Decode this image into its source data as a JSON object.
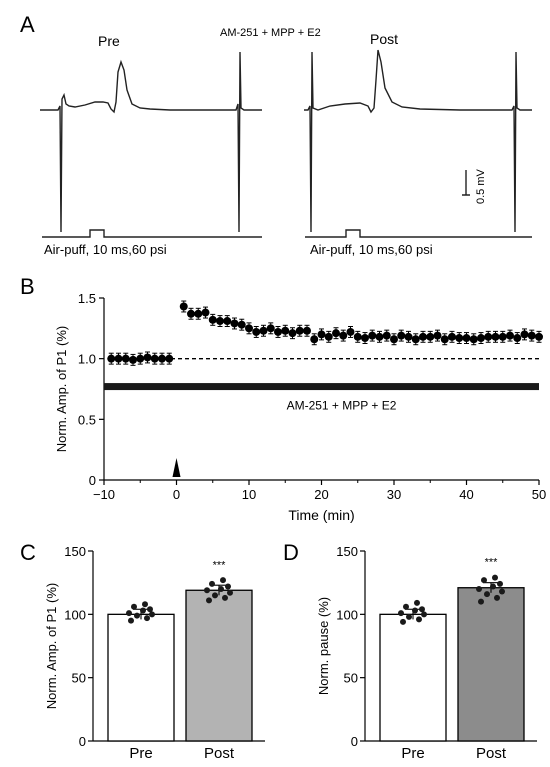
{
  "panels": {
    "A": "A",
    "B": "B",
    "C": "C",
    "D": "D"
  },
  "panel_a": {
    "condition": "AM-251 + MPP + E2",
    "pre_label": "Pre",
    "post_label": "Post",
    "stimulus_label": "Air-puff, 10 ms,60 psi",
    "scale_bar": "0.5 mV"
  },
  "chart_data": [
    {
      "type": "scatter",
      "panel": "B",
      "xlabel": "Time (min)",
      "ylabel": "Norm. Amp. of P1 (%)",
      "xlim": [
        -10,
        50
      ],
      "ylim": [
        0,
        1.5
      ],
      "x_ticks": [
        "−10",
        "0",
        "10",
        "20",
        "30",
        "40",
        "50"
      ],
      "y_ticks": [
        "0",
        "0.5",
        "1.0",
        "1.5"
      ],
      "reference_line": 1.0,
      "drug_bar_label": "AM-251 + MPP + E2",
      "drug_bar_y": 0.77,
      "stimulus_marker_x": 0,
      "x": [
        -9,
        -8,
        -7,
        -6,
        -5,
        -4,
        -3,
        -2,
        -1,
        1,
        2,
        3,
        4,
        5,
        6,
        7,
        8,
        9,
        10,
        11,
        12,
        13,
        14,
        15,
        16,
        17,
        18,
        19,
        20,
        21,
        22,
        23,
        24,
        25,
        26,
        27,
        28,
        29,
        30,
        31,
        32,
        33,
        34,
        35,
        36,
        37,
        38,
        39,
        40,
        41,
        42,
        43,
        44,
        45,
        46,
        47,
        48,
        49,
        50
      ],
      "y": [
        1.0,
        1.0,
        1.0,
        0.99,
        1.0,
        1.01,
        1.0,
        1.0,
        1.0,
        1.43,
        1.37,
        1.37,
        1.38,
        1.32,
        1.31,
        1.31,
        1.29,
        1.28,
        1.25,
        1.22,
        1.23,
        1.25,
        1.22,
        1.23,
        1.21,
        1.23,
        1.23,
        1.16,
        1.2,
        1.18,
        1.21,
        1.19,
        1.22,
        1.18,
        1.17,
        1.19,
        1.18,
        1.19,
        1.16,
        1.19,
        1.18,
        1.16,
        1.18,
        1.18,
        1.19,
        1.16,
        1.18,
        1.17,
        1.17,
        1.16,
        1.17,
        1.18,
        1.18,
        1.18,
        1.19,
        1.17,
        1.2,
        1.19,
        1.18
      ],
      "error": 0.045
    },
    {
      "type": "bar",
      "panel": "C",
      "categories": [
        "Pre",
        "Post"
      ],
      "values": [
        100,
        119
      ],
      "ylabel": "Norm. Amp. of P1 (%)",
      "ylim": [
        0,
        150
      ],
      "y_ticks": [
        "0",
        "50",
        "100",
        "150"
      ],
      "significance": "***",
      "bar_colors": [
        "#ffffff",
        "#b3b3b3"
      ],
      "points": [
        [
          95,
          97,
          99,
          100,
          101,
          103,
          104,
          106,
          108
        ],
        [
          111,
          113,
          115,
          117,
          119,
          120,
          122,
          124,
          127
        ]
      ]
    },
    {
      "type": "bar",
      "panel": "D",
      "categories": [
        "Pre",
        "Post"
      ],
      "values": [
        100,
        121
      ],
      "ylabel": "Norm. pause (%)",
      "ylim": [
        0,
        150
      ],
      "y_ticks": [
        "0",
        "50",
        "100",
        "150"
      ],
      "significance": "***",
      "bar_colors": [
        "#ffffff",
        "#8c8c8c"
      ],
      "points": [
        [
          94,
          96,
          98,
          100,
          101,
          103,
          104,
          106,
          109
        ],
        [
          110,
          113,
          116,
          118,
          120,
          122,
          124,
          127,
          129
        ]
      ]
    }
  ]
}
